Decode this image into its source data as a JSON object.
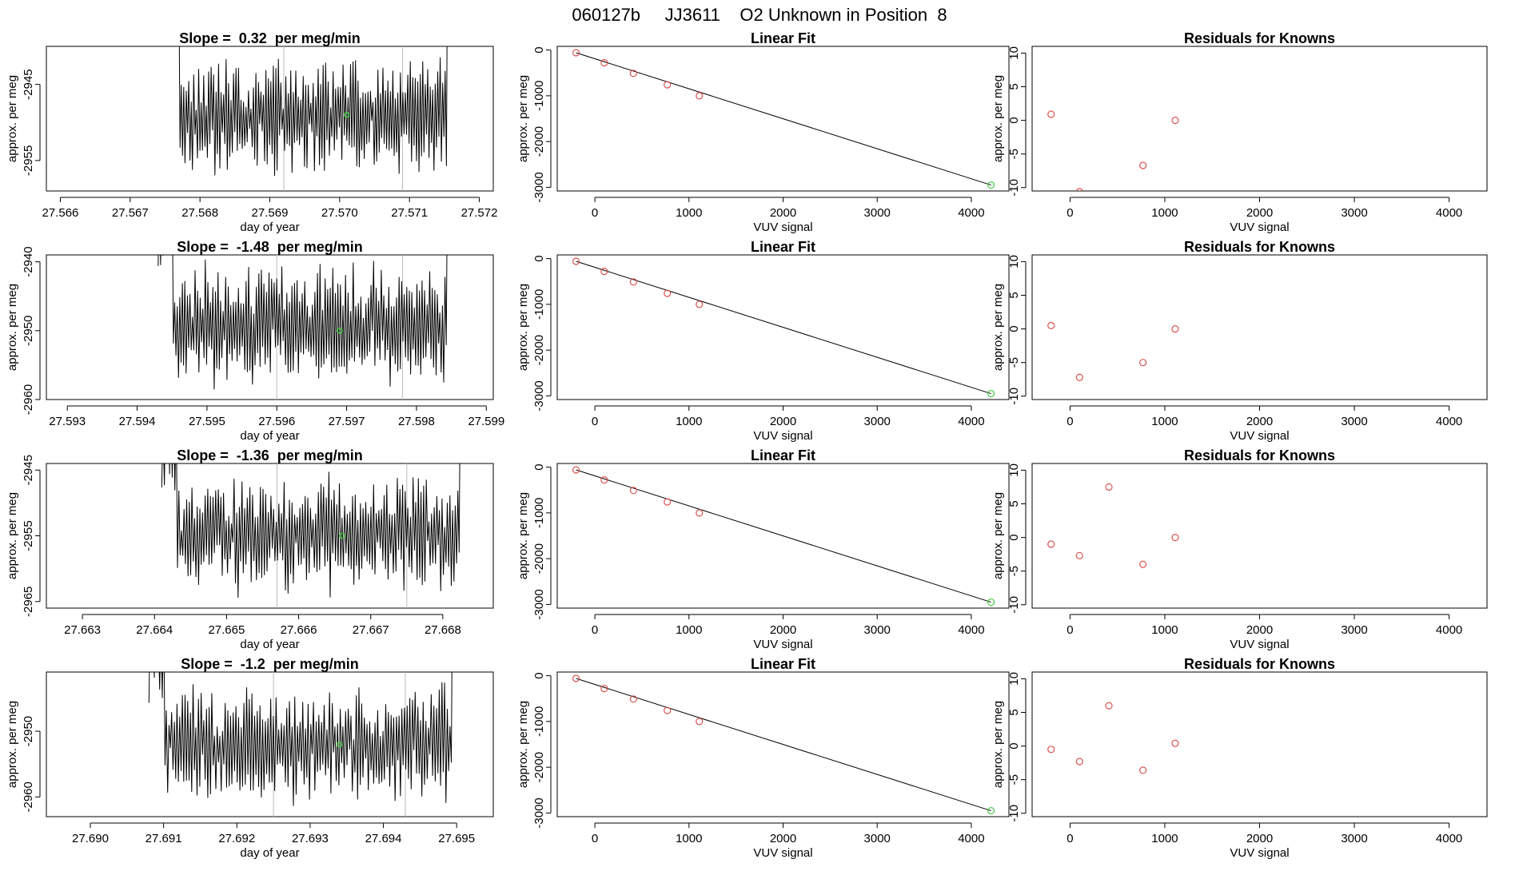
{
  "figure_title": "060127b     JJ3611    O2 Unknown in Position  8",
  "colors": {
    "axis": "#000000",
    "trace": "#000000",
    "known": "#d9534f",
    "unknown": "#44cc44",
    "marker_line": "#bbbbbb"
  },
  "chart_data": [
    {
      "id": "r1c1",
      "type": "line",
      "title": "Slope =  0.32  per meg/min",
      "xlabel": "day of year",
      "ylabel": "approx. per meg",
      "xlim": [
        27.5658,
        27.5722
      ],
      "ylim": [
        -2959,
        -2940
      ],
      "xticks": [
        27.566,
        27.567,
        27.568,
        27.569,
        27.57,
        27.571,
        27.572
      ],
      "yticks": [
        -2955,
        -2945
      ],
      "trace": {
        "x_start": 27.5675,
        "x_end": 27.5716,
        "base": -2949,
        "amp": 6,
        "seed": 3
      },
      "markers": [
        27.5692,
        27.5709
      ],
      "unknown_point": [
        27.5701,
        -2949
      ]
    },
    {
      "id": "r1c2",
      "type": "scatter",
      "title": "Linear Fit",
      "xlabel": "VUV signal",
      "ylabel": "approx. per meg",
      "xlim": [
        -400,
        4400
      ],
      "ylim": [
        -3080,
        80
      ],
      "xticks": [
        0,
        1000,
        2000,
        3000,
        4000
      ],
      "yticks": [
        0,
        -1000,
        -2000,
        -3000
      ],
      "knowns": [
        [
          -200,
          -60
        ],
        [
          100,
          -280
        ],
        [
          410,
          -510
        ],
        [
          770,
          -760
        ],
        [
          1110,
          -1000
        ]
      ],
      "unknown_point": [
        4210,
        -2950
      ],
      "fit_line": [
        [
          -200,
          -60
        ],
        [
          4210,
          -2950
        ]
      ]
    },
    {
      "id": "r1c3",
      "type": "scatter",
      "title": "Residuals for Knowns",
      "xlabel": "VUV signal",
      "ylabel": "approx. per meg",
      "xlim": [
        -400,
        4400
      ],
      "ylim": [
        -10.5,
        11
      ],
      "xticks": [
        0,
        1000,
        2000,
        3000,
        4000
      ],
      "yticks": [
        10,
        5,
        0,
        -5,
        -10
      ],
      "points": [
        [
          -200,
          0.9
        ],
        [
          100,
          -10.6
        ],
        [
          770,
          -6.7
        ],
        [
          1110,
          0
        ]
      ]
    },
    {
      "id": "r2c1",
      "type": "line",
      "title": "Slope =  -1.48  per meg/min",
      "xlabel": "day of year",
      "ylabel": "approx. per meg",
      "xlim": [
        27.5927,
        27.5991
      ],
      "ylim": [
        -2960,
        -2939
      ],
      "xticks": [
        27.593,
        27.594,
        27.595,
        27.596,
        27.597,
        27.598,
        27.599
      ],
      "yticks": [
        -2960,
        -2950,
        -2940
      ],
      "trace": {
        "x_start": 27.5943,
        "x_end": 27.5985,
        "base": -2949,
        "amp": 7,
        "seed": 7
      },
      "markers": [
        27.596,
        27.5978
      ],
      "unknown_point": [
        27.5969,
        -2950
      ]
    },
    {
      "id": "r2c2",
      "type": "scatter",
      "title": "Linear Fit",
      "xlabel": "VUV signal",
      "ylabel": "approx. per meg",
      "xlim": [
        -400,
        4400
      ],
      "ylim": [
        -3080,
        80
      ],
      "xticks": [
        0,
        1000,
        2000,
        3000,
        4000
      ],
      "yticks": [
        0,
        -1000,
        -2000,
        -3000
      ],
      "knowns": [
        [
          -200,
          -60
        ],
        [
          100,
          -280
        ],
        [
          410,
          -510
        ],
        [
          770,
          -760
        ],
        [
          1110,
          -1000
        ]
      ],
      "unknown_point": [
        4210,
        -2950
      ],
      "fit_line": [
        [
          -200,
          -60
        ],
        [
          4210,
          -2950
        ]
      ]
    },
    {
      "id": "r2c3",
      "type": "scatter",
      "title": "Residuals for Knowns",
      "xlabel": "VUV signal",
      "ylabel": "approx. per meg",
      "xlim": [
        -400,
        4400
      ],
      "ylim": [
        -10.5,
        11
      ],
      "xticks": [
        0,
        1000,
        2000,
        3000,
        4000
      ],
      "yticks": [
        10,
        5,
        0,
        -5,
        -10
      ],
      "points": [
        [
          -200,
          0.5
        ],
        [
          100,
          -7.2
        ],
        [
          770,
          -5
        ],
        [
          1110,
          0
        ]
      ]
    },
    {
      "id": "r3c1",
      "type": "line",
      "title": "Slope =  -1.36  per meg/min",
      "xlabel": "day of year",
      "ylabel": "approx. per meg",
      "xlim": [
        27.6625,
        27.6687
      ],
      "ylim": [
        -2966,
        -2944
      ],
      "xticks": [
        27.663,
        27.664,
        27.665,
        27.666,
        27.667,
        27.668
      ],
      "yticks": [
        -2965,
        -2955,
        -2945
      ],
      "trace": {
        "x_start": 27.6641,
        "x_end": 27.6683,
        "base": -2955,
        "amp": 7,
        "seed": 11
      },
      "markers": [
        27.6657,
        27.6675
      ],
      "unknown_point": [
        27.6666,
        -2955
      ]
    },
    {
      "id": "r3c2",
      "type": "scatter",
      "title": "Linear Fit",
      "xlabel": "VUV signal",
      "ylabel": "approx. per meg",
      "xlim": [
        -400,
        4400
      ],
      "ylim": [
        -3080,
        80
      ],
      "xticks": [
        0,
        1000,
        2000,
        3000,
        4000
      ],
      "yticks": [
        0,
        -1000,
        -2000,
        -3000
      ],
      "knowns": [
        [
          -200,
          -60
        ],
        [
          100,
          -280
        ],
        [
          410,
          -510
        ],
        [
          770,
          -760
        ],
        [
          1110,
          -1000
        ]
      ],
      "unknown_point": [
        4210,
        -2950
      ],
      "fit_line": [
        [
          -200,
          -60
        ],
        [
          4210,
          -2950
        ]
      ]
    },
    {
      "id": "r3c3",
      "type": "scatter",
      "title": "Residuals for Knowns",
      "xlabel": "VUV signal",
      "ylabel": "approx. per meg",
      "xlim": [
        -400,
        4400
      ],
      "ylim": [
        -10.5,
        11
      ],
      "xticks": [
        0,
        1000,
        2000,
        3000,
        4000
      ],
      "yticks": [
        10,
        5,
        0,
        -5,
        -10
      ],
      "points": [
        [
          -200,
          -1
        ],
        [
          100,
          -2.7
        ],
        [
          410,
          7.5
        ],
        [
          770,
          -4
        ],
        [
          1110,
          0
        ]
      ]
    },
    {
      "id": "r4c1",
      "type": "line",
      "title": "Slope =  -1.2  per meg/min",
      "xlabel": "day of year",
      "ylabel": "approx. per meg",
      "xlim": [
        27.6894,
        27.6955
      ],
      "ylim": [
        -2963,
        -2941
      ],
      "xticks": [
        27.69,
        27.691,
        27.692,
        27.693,
        27.694,
        27.695
      ],
      "yticks": [
        -2960,
        -2950
      ],
      "trace": {
        "x_start": 27.6908,
        "x_end": 27.695,
        "base": -2952,
        "amp": 7,
        "seed": 17
      },
      "markers": [
        27.6925,
        27.6943
      ],
      "unknown_point": [
        27.6934,
        -2952
      ]
    },
    {
      "id": "r4c2",
      "type": "scatter",
      "title": "Linear Fit",
      "xlabel": "VUV signal",
      "ylabel": "approx. per meg",
      "xlim": [
        -400,
        4400
      ],
      "ylim": [
        -3080,
        80
      ],
      "xticks": [
        0,
        1000,
        2000,
        3000,
        4000
      ],
      "yticks": [
        0,
        -1000,
        -2000,
        -3000
      ],
      "knowns": [
        [
          -200,
          -60
        ],
        [
          100,
          -280
        ],
        [
          410,
          -510
        ],
        [
          770,
          -760
        ],
        [
          1110,
          -1000
        ]
      ],
      "unknown_point": [
        4210,
        -2950
      ],
      "fit_line": [
        [
          -200,
          -60
        ],
        [
          4210,
          -2950
        ]
      ]
    },
    {
      "id": "r4c3",
      "type": "scatter",
      "title": "Residuals for Knowns",
      "xlabel": "VUV signal",
      "ylabel": "approx. per meg",
      "xlim": [
        -400,
        4400
      ],
      "ylim": [
        -10.5,
        11
      ],
      "xticks": [
        0,
        1000,
        2000,
        3000,
        4000
      ],
      "yticks": [
        10,
        5,
        0,
        -5,
        -10
      ],
      "points": [
        [
          -200,
          -0.5
        ],
        [
          100,
          -2.3
        ],
        [
          410,
          6
        ],
        [
          770,
          -3.6
        ],
        [
          1110,
          0.4
        ]
      ]
    }
  ]
}
